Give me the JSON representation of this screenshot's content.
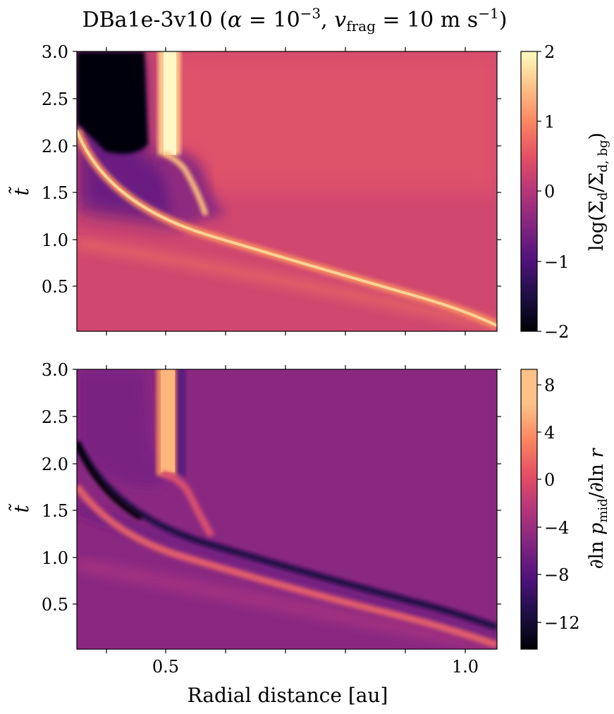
{
  "title": "DBa1e-3v10 (α = 10⁻³, v_frag = 10 m s⁻¹)",
  "title_parts": {
    "prefix": "DBa1e-3v10 (",
    "alpha": "α",
    "eq1": " = ",
    "ten": "10",
    "exp": "−3",
    "comma": ", ",
    "v": "v",
    "frag": "frag",
    "eq2": " = 10 m s",
    "exp2": "−1",
    "close": ")"
  },
  "chart_data": [
    {
      "type": "heatmap",
      "panel": "top",
      "xlabel": "",
      "ylabel": "t̃",
      "xlim": [
        0.45,
        1.03
      ],
      "ylim": [
        0.0,
        3.0
      ],
      "xticks": [
        0.5,
        0.6,
        0.7,
        0.8,
        0.9,
        1.0
      ],
      "xtick_labels": [],
      "yticks": [
        0.5,
        1.0,
        1.5,
        2.0,
        2.5,
        3.0
      ],
      "ytick_labels": [
        "0.5",
        "1.0",
        "1.5",
        "2.0",
        "2.5",
        "3.0"
      ],
      "colormap": "magma",
      "colorbar": {
        "label": "log(Σd/Σd,bg)",
        "label_parts": {
          "pre": "log(Σ",
          "sub1": "d",
          "mid": "/Σ",
          "sub2": "d, bg",
          "post": ")"
        },
        "range": [
          -2,
          2
        ],
        "ticks": [
          2,
          1,
          0,
          -1,
          -2
        ],
        "tick_labels": [
          "2",
          "1",
          "0",
          "−1",
          "−2"
        ]
      },
      "features": {
        "background_value": 0.35,
        "ridge": {
          "description": "bright inward-moving ring",
          "from": [
            1.03,
            0.0
          ],
          "to": [
            0.45,
            2.25
          ],
          "peak_value": 1.6
        },
        "void_region": {
          "x_range": [
            0.45,
            0.49
          ],
          "t_range": [
            1.95,
            3.0
          ],
          "value": -2.0
        },
        "vertical_ring": {
          "x": 0.5,
          "t_range": [
            1.9,
            3.0
          ],
          "value": 2.0
        }
      }
    },
    {
      "type": "heatmap",
      "panel": "bottom",
      "xlabel": "Radial distance [au]",
      "ylabel": "t̃",
      "xlim": [
        0.45,
        1.03
      ],
      "ylim": [
        0.0,
        3.0
      ],
      "xticks": [
        0.5,
        0.6,
        0.7,
        0.8,
        0.9,
        1.0
      ],
      "xtick_labels": [
        "0.5",
        "",
        "",
        "",
        "",
        "1.0"
      ],
      "yticks": [
        0.5,
        1.0,
        1.5,
        2.0,
        2.5,
        3.0
      ],
      "ytick_labels": [
        "0.5",
        "1.0",
        "1.5",
        "2.0",
        "2.5",
        "3.0"
      ],
      "colormap": "magma",
      "colorbar": {
        "label": "∂ln p_mid/∂ln r",
        "label_parts": {
          "pre": "∂ln ",
          "p": "p",
          "sub": "mid",
          "post": "/∂ln ",
          "r": "r"
        },
        "range": [
          -14,
          9.5
        ],
        "ticks": [
          8,
          4,
          0,
          -4,
          -8,
          -12
        ],
        "tick_labels": [
          "8",
          "4",
          "0",
          "−4",
          "−8",
          "−12"
        ]
      },
      "features": {
        "background_value": -3.0,
        "dark_band": {
          "description": "strongly negative gradient along inner side of ring",
          "min_value": -13.5
        },
        "bright_band": {
          "description": "positive gradient ahead of ring",
          "max_value": 8.5
        },
        "vertical_ring": {
          "x": 0.5,
          "t_range": [
            1.9,
            3.0
          ],
          "value": 8.5
        }
      }
    }
  ]
}
